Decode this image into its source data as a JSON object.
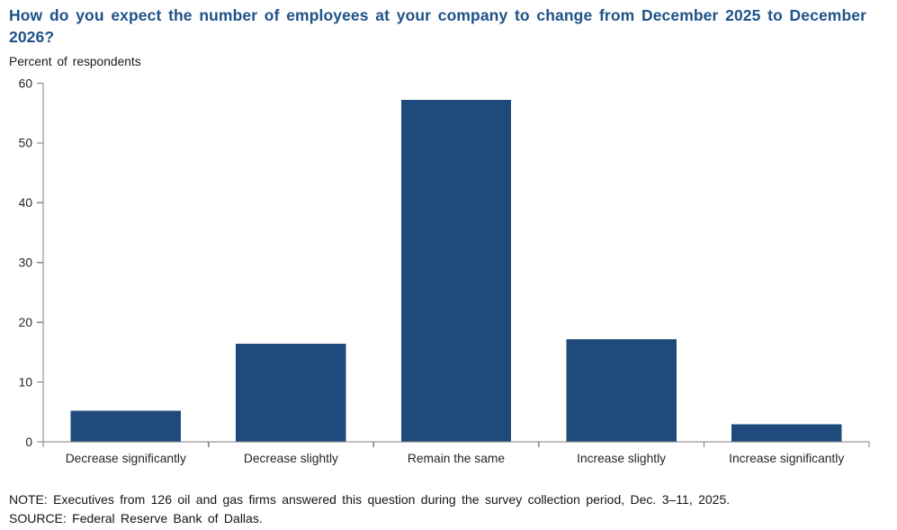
{
  "header": {
    "title": "How do you expect the number of employees at your company to change from December 2025 to December 2026?",
    "subtitle": "Percent of respondents"
  },
  "footer": {
    "note": "NOTE: Executives from 126 oil and gas firms answered this question during the survey collection period, Dec. 3–11, 2025.",
    "source": "SOURCE: Federal Reserve Bank of Dallas."
  },
  "colors": {
    "bar": "#1F4A7B",
    "title": "#1E5288",
    "axis": "#7F7F7F",
    "tick_text": "#262626"
  },
  "chart_data": {
    "type": "bar",
    "categories": [
      "Decrease significantly",
      "Decrease slightly",
      "Remain the same",
      "Increase slightly",
      "Increase significantly"
    ],
    "values": [
      5.2,
      16.4,
      57.2,
      17.2,
      2.9
    ],
    "title": "How do you expect the number of employees at your company to change from December 2025 to December 2026?",
    "xlabel": "",
    "ylabel": "Percent of respondents",
    "ylim": [
      0,
      60
    ],
    "yticks": [
      0,
      10,
      20,
      30,
      40,
      50,
      60
    ],
    "grid": false,
    "legend": "none",
    "bar_gap_ratio": 0.5
  }
}
